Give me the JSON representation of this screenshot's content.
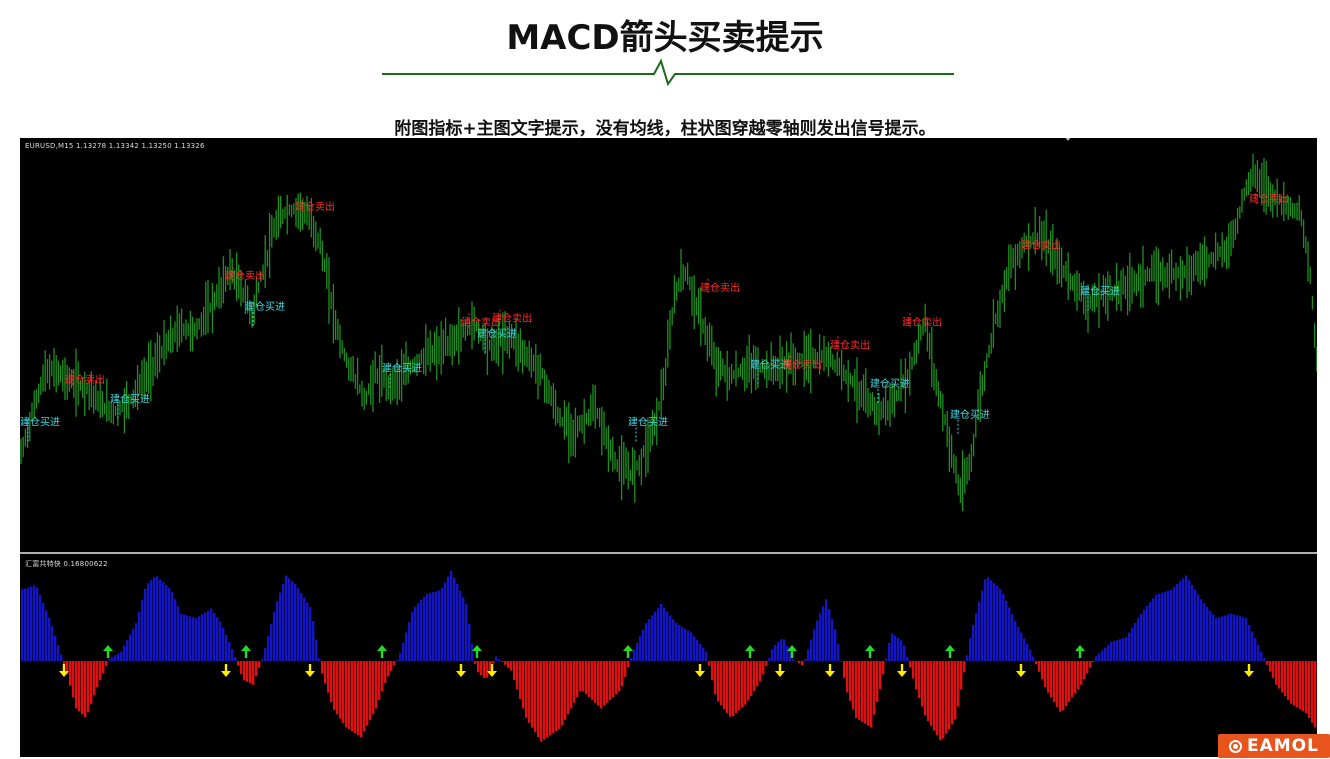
{
  "title": "MACD箭头买卖提示",
  "subtitle": "附图指标+主图文字提示，没有均线，柱状图穿越零轴则发出信号提示。",
  "chart_window": {
    "symbol_info": "EURUSD,M15  1.13278 1.13342 1.13250 1.13326",
    "indicator_info": "汇富共特快 0.16800622"
  },
  "logo": {
    "text": "EAMOL"
  },
  "colors": {
    "candle": "#1f8f1f",
    "buy_label": "#3fd7e0",
    "sell_label": "#ff2a2a",
    "histogram_positive": "#1515c8",
    "histogram_negative": "#e01010",
    "arrow_up": "#22dd22",
    "arrow_down": "#ffee00",
    "divider_line": "#1a6b1a"
  },
  "chart_data": [
    {
      "type": "candlestick",
      "symbol": "EURUSD,M15",
      "open": 1.13278,
      "high": 1.13342,
      "low": 1.1325,
      "close": 1.13326,
      "series": [
        {
          "name": "price",
          "x": [
            0,
            18,
            25,
            35,
            50,
            70,
            80,
            95,
            110,
            125,
            140,
            160,
            175,
            195,
            210,
            225,
            232,
            240,
            255,
            265,
            280,
            290,
            300,
            315,
            325,
            335,
            345,
            355,
            370,
            385,
            400,
            420,
            440,
            455,
            470,
            490,
            505,
            520,
            540,
            555,
            575,
            595,
            610,
            620,
            635,
            645,
            655,
            665,
            680,
            695,
            710,
            730,
            750,
            770,
            790,
            810,
            830,
            845,
            860,
            875,
            890,
            905,
            915,
            925,
            940,
            950,
            960,
            975,
            990,
            1005,
            1020,
            1040,
            1055,
            1070,
            1085,
            1100,
            1115,
            1130,
            1150,
            1170,
            1190,
            1205,
            1215,
            1225,
            1235,
            1250,
            1265,
            1280,
            1290,
            1297
          ],
          "y": [
            0.22,
            0.39,
            0.44,
            0.45,
            0.42,
            0.4,
            0.36,
            0.34,
            0.37,
            0.43,
            0.49,
            0.56,
            0.55,
            0.63,
            0.71,
            0.64,
            0.59,
            0.68,
            0.82,
            0.86,
            0.87,
            0.84,
            0.78,
            0.58,
            0.48,
            0.43,
            0.37,
            0.44,
            0.41,
            0.44,
            0.48,
            0.5,
            0.54,
            0.57,
            0.51,
            0.54,
            0.49,
            0.45,
            0.32,
            0.29,
            0.35,
            0.21,
            0.18,
            0.21,
            0.31,
            0.43,
            0.65,
            0.71,
            0.59,
            0.47,
            0.43,
            0.46,
            0.45,
            0.47,
            0.48,
            0.48,
            0.43,
            0.37,
            0.34,
            0.37,
            0.45,
            0.58,
            0.43,
            0.32,
            0.13,
            0.2,
            0.38,
            0.58,
            0.72,
            0.78,
            0.8,
            0.72,
            0.67,
            0.62,
            0.65,
            0.66,
            0.68,
            0.7,
            0.7,
            0.71,
            0.74,
            0.76,
            0.81,
            0.92,
            0.96,
            0.91,
            0.88,
            0.86,
            0.7,
            0.47
          ]
        }
      ],
      "signals": [
        {
          "x": 0,
          "y": 0.3,
          "type": "buy",
          "label": "建仓买进"
        },
        {
          "x": 45,
          "y": 0.41,
          "type": "sell",
          "label": "建仓卖出"
        },
        {
          "x": 90,
          "y": 0.36,
          "type": "buy",
          "label": "建仓买进"
        },
        {
          "x": 205,
          "y": 0.68,
          "type": "sell",
          "label": "建仓卖出"
        },
        {
          "x": 225,
          "y": 0.6,
          "type": "buy",
          "label": "建仓买进"
        },
        {
          "x": 275,
          "y": 0.86,
          "type": "sell",
          "label": "建仓卖出"
        },
        {
          "x": 362,
          "y": 0.44,
          "type": "buy",
          "label": "建仓买进"
        },
        {
          "x": 441,
          "y": 0.56,
          "type": "sell",
          "label": "建仓卖出"
        },
        {
          "x": 457,
          "y": 0.53,
          "type": "buy",
          "label": "建仓买进"
        },
        {
          "x": 472,
          "y": 0.57,
          "type": "sell",
          "label": "建仓卖出"
        },
        {
          "x": 608,
          "y": 0.3,
          "type": "buy",
          "label": "建仓买进"
        },
        {
          "x": 680,
          "y": 0.65,
          "type": "sell",
          "label": "建仓卖出"
        },
        {
          "x": 730,
          "y": 0.45,
          "type": "buy",
          "label": "建仓买进"
        },
        {
          "x": 762,
          "y": 0.45,
          "type": "sell",
          "label": "建仓卖出"
        },
        {
          "x": 810,
          "y": 0.5,
          "type": "sell",
          "label": "建仓卖出"
        },
        {
          "x": 850,
          "y": 0.4,
          "type": "buy",
          "label": "建仓买进"
        },
        {
          "x": 882,
          "y": 0.56,
          "type": "sell",
          "label": "建仓卖出"
        },
        {
          "x": 930,
          "y": 0.32,
          "type": "buy",
          "label": "建仓买进"
        },
        {
          "x": 1001,
          "y": 0.76,
          "type": "sell",
          "label": "建仓卖出"
        },
        {
          "x": 1060,
          "y": 0.64,
          "type": "buy",
          "label": "建仓买进"
        },
        {
          "x": 1229,
          "y": 0.88,
          "type": "sell",
          "label": "建仓卖出"
        }
      ]
    },
    {
      "type": "bar",
      "name": "MACD histogram",
      "value": 0.16800622,
      "ylim": [
        -1,
        1
      ],
      "series": [
        {
          "name": "histogram",
          "x": [
            0,
            15,
            30,
            45,
            55,
            65,
            75,
            88,
            100,
            115,
            125,
            135,
            150,
            160,
            175,
            190,
            200,
            212,
            222,
            232,
            242,
            255,
            265,
            275,
            290,
            300,
            312,
            325,
            340,
            355,
            365,
            378,
            392,
            405,
            420,
            430,
            445,
            455,
            465,
            475,
            490,
            505,
            520,
            540,
            560,
            580,
            600,
            612,
            625,
            640,
            655,
            670,
            685,
            695,
            710,
            725,
            740,
            752,
            762,
            772,
            782,
            795,
            805,
            815,
            825,
            835,
            850,
            860,
            870,
            882,
            895,
            905,
            920,
            935,
            950,
            965,
            980,
            995,
            1010,
            1025,
            1040,
            1060,
            1075,
            1090,
            1105,
            1120,
            1135,
            1150,
            1165,
            1180,
            1195,
            1210,
            1225,
            1240,
            1255,
            1270,
            1285,
            1297
          ],
          "y": [
            0.75,
            0.8,
            0.4,
            -0.1,
            -0.5,
            -0.6,
            -0.3,
            0.02,
            0.1,
            0.4,
            0.8,
            0.9,
            0.75,
            0.5,
            0.45,
            0.55,
            0.4,
            0.1,
            -0.2,
            -0.25,
            0.05,
            0.6,
            0.9,
            0.8,
            0.55,
            -0.1,
            -0.5,
            -0.7,
            -0.8,
            -0.5,
            -0.2,
            0.05,
            0.55,
            0.7,
            0.75,
            0.95,
            0.6,
            -0.1,
            -0.2,
            0.05,
            -0.1,
            -0.6,
            -0.85,
            -0.7,
            -0.3,
            -0.5,
            -0.3,
            0.1,
            0.4,
            0.6,
            0.4,
            0.3,
            0.1,
            -0.4,
            -0.6,
            -0.45,
            -0.2,
            0.15,
            0.25,
            0.02,
            -0.05,
            0.4,
            0.65,
            0.3,
            -0.3,
            -0.6,
            -0.7,
            -0.25,
            0.3,
            0.2,
            -0.3,
            -0.6,
            -0.85,
            -0.6,
            0.3,
            0.9,
            0.75,
            0.4,
            0.1,
            -0.3,
            -0.55,
            -0.25,
            0.05,
            0.2,
            0.25,
            0.5,
            0.7,
            0.75,
            0.9,
            0.65,
            0.45,
            0.5,
            0.45,
            0.1,
            -0.25,
            -0.45,
            -0.55,
            -0.75
          ]
        }
      ],
      "arrows": [
        {
          "x": 44,
          "dir": "down"
        },
        {
          "x": 88,
          "dir": "up"
        },
        {
          "x": 206,
          "dir": "down"
        },
        {
          "x": 226,
          "dir": "up"
        },
        {
          "x": 290,
          "dir": "down"
        },
        {
          "x": 362,
          "dir": "up"
        },
        {
          "x": 441,
          "dir": "down"
        },
        {
          "x": 457,
          "dir": "up"
        },
        {
          "x": 472,
          "dir": "down"
        },
        {
          "x": 608,
          "dir": "up"
        },
        {
          "x": 680,
          "dir": "down"
        },
        {
          "x": 730,
          "dir": "up"
        },
        {
          "x": 760,
          "dir": "down"
        },
        {
          "x": 772,
          "dir": "up"
        },
        {
          "x": 810,
          "dir": "down"
        },
        {
          "x": 850,
          "dir": "up"
        },
        {
          "x": 882,
          "dir": "down"
        },
        {
          "x": 930,
          "dir": "up"
        },
        {
          "x": 1001,
          "dir": "down"
        },
        {
          "x": 1060,
          "dir": "up"
        },
        {
          "x": 1229,
          "dir": "down"
        }
      ]
    }
  ]
}
